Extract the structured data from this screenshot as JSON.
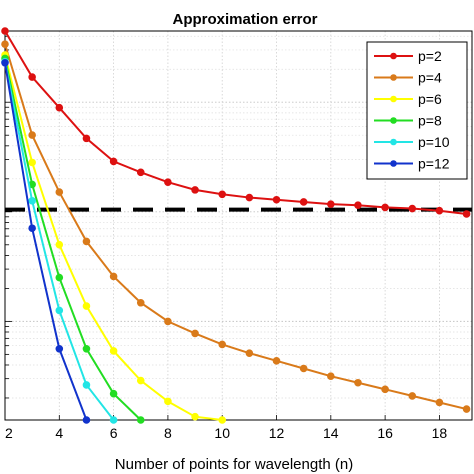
{
  "chart_data": {
    "type": "line",
    "title": "Approximation error",
    "xlabel": "Number of points for wavelength (n)",
    "ylabel": "",
    "xlim": [
      2,
      19.2
    ],
    "x_ticks": [
      2,
      4,
      6,
      8,
      10,
      12,
      14,
      16,
      18
    ],
    "yscale": "log",
    "ylim_log10": [
      -3.9,
      -0.35
    ],
    "y_major_log10": [
      -3,
      -2,
      -1
    ],
    "grid": true,
    "legend_position": "top-right",
    "threshold": {
      "style": "dashed",
      "color": "#000000",
      "value_log10": -1.98
    },
    "series": [
      {
        "name": "p=2",
        "color": "#dd1111",
        "x": [
          2,
          3,
          4,
          5,
          6,
          7,
          8,
          9,
          10,
          11,
          12,
          13,
          14,
          15,
          16,
          17,
          18,
          19
        ],
        "log10_y": [
          -0.35,
          -0.77,
          -1.05,
          -1.33,
          -1.54,
          -1.64,
          -1.73,
          -1.8,
          -1.84,
          -1.87,
          -1.89,
          -1.91,
          -1.93,
          -1.94,
          -1.96,
          -1.97,
          -1.99,
          -2.02
        ]
      },
      {
        "name": "p=4",
        "color": "#d97a1a",
        "x": [
          2,
          3,
          4,
          5,
          6,
          7,
          8,
          9,
          10,
          11,
          12,
          13,
          14,
          15,
          16,
          17,
          18,
          19
        ],
        "log10_y": [
          -0.47,
          -1.3,
          -1.82,
          -2.27,
          -2.59,
          -2.83,
          -3.0,
          -3.11,
          -3.21,
          -3.29,
          -3.36,
          -3.43,
          -3.5,
          -3.56,
          -3.62,
          -3.68,
          -3.74,
          -3.8
        ]
      },
      {
        "name": "p=6",
        "color": "#ffff00",
        "x": [
          2,
          3,
          4,
          5,
          6,
          7,
          8,
          9,
          10
        ],
        "log10_y": [
          -0.57,
          -1.55,
          -2.3,
          -2.86,
          -3.27,
          -3.54,
          -3.73,
          -3.87,
          -3.97
        ]
      },
      {
        "name": "p=8",
        "color": "#22dd22",
        "x": [
          2,
          3,
          4,
          5,
          6,
          7
        ],
        "log10_y": [
          -0.6,
          -1.75,
          -2.6,
          -3.25,
          -3.66,
          -3.93
        ]
      },
      {
        "name": "p=10",
        "color": "#22e5e5",
        "x": [
          2,
          3,
          4,
          5,
          6
        ],
        "log10_y": [
          -0.63,
          -1.9,
          -2.9,
          -3.58,
          -4.0
        ]
      },
      {
        "name": "p=12",
        "color": "#1133cc",
        "x": [
          2,
          3,
          4,
          5
        ],
        "log10_y": [
          -0.64,
          -2.15,
          -3.25,
          -4.0
        ]
      }
    ]
  }
}
